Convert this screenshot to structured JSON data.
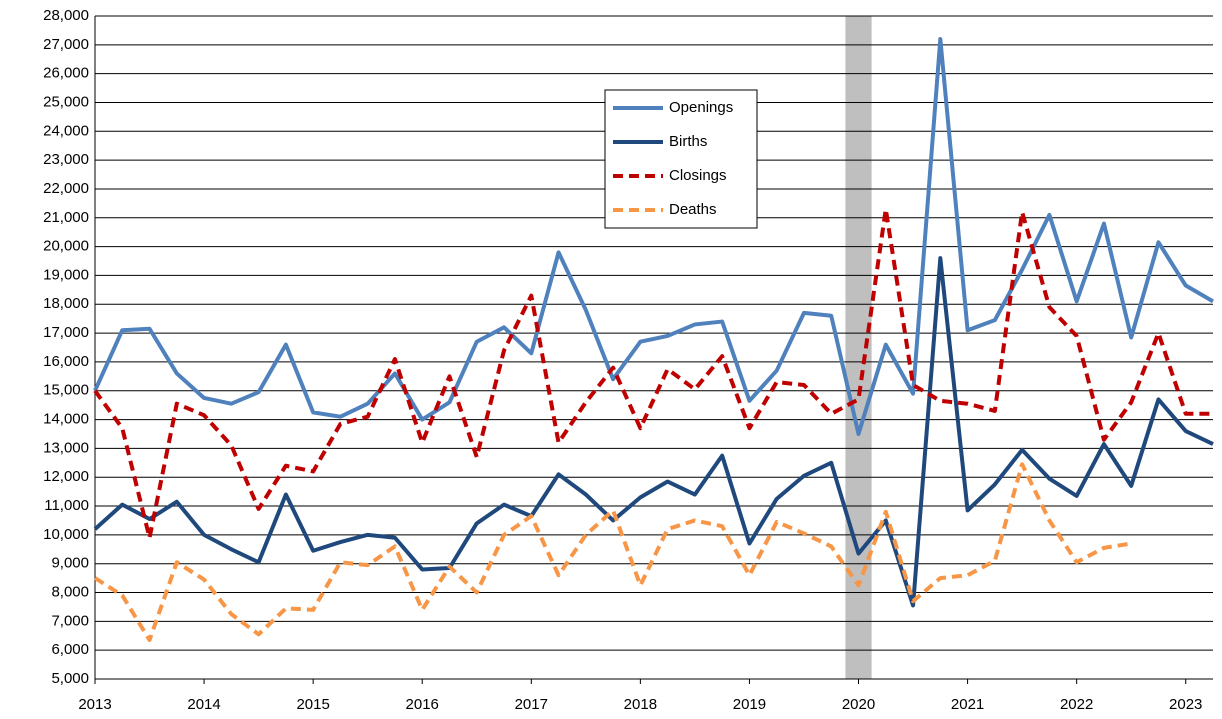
{
  "chart_data": {
    "type": "line",
    "x": [
      2013,
      2013.25,
      2013.5,
      2013.75,
      2014,
      2014.25,
      2014.5,
      2014.75,
      2015,
      2015.25,
      2015.5,
      2015.75,
      2016,
      2016.25,
      2016.5,
      2016.75,
      2017,
      2017.25,
      2017.5,
      2017.75,
      2018,
      2018.25,
      2018.5,
      2018.75,
      2019,
      2019.25,
      2019.5,
      2019.75,
      2020,
      2020.25,
      2020.5,
      2020.75,
      2021,
      2021.25,
      2021.5,
      2021.75,
      2022,
      2022.25,
      2022.5,
      2022.75,
      2023,
      2023.25
    ],
    "series": [
      {
        "name": "Openings",
        "color": "#4f81bd",
        "dash": "solid",
        "values": [
          15000,
          17100,
          17150,
          15600,
          14750,
          14550,
          14950,
          16600,
          14250,
          14100,
          14550,
          15600,
          14000,
          14600,
          16700,
          17200,
          16300,
          19800,
          17800,
          15400,
          16700,
          16900,
          17300,
          17400,
          14650,
          15700,
          17700,
          17600,
          13500,
          16600,
          14900,
          27200,
          17100,
          17450,
          19200,
          21100,
          18100,
          20800,
          16850,
          20150,
          18650,
          18100
        ]
      },
      {
        "name": "Births",
        "color": "#1f497d",
        "dash": "solid",
        "values": [
          10200,
          11050,
          10550,
          11150,
          10000,
          9500,
          9050,
          11400,
          9450,
          9750,
          10000,
          9900,
          8800,
          8850,
          10400,
          11050,
          10650,
          12100,
          11400,
          10500,
          11300,
          11850,
          11400,
          12750,
          9700,
          11250,
          12050,
          12500,
          9350,
          10500,
          7550,
          19600,
          10850,
          11750,
          12950,
          11950,
          11350,
          13150,
          11700,
          14700,
          13600,
          13150
        ]
      },
      {
        "name": "Closings",
        "color": "#c00000",
        "dash": "dashed",
        "values": [
          15000,
          13700,
          9900,
          14550,
          14150,
          13100,
          10900,
          12400,
          12200,
          13850,
          14100,
          16100,
          13200,
          15500,
          12700,
          16400,
          18300,
          13200,
          14600,
          15800,
          13700,
          15750,
          15050,
          16200,
          13700,
          15300,
          15200,
          14200,
          14700,
          21300,
          15200,
          14650,
          14550,
          14300,
          21200,
          17900,
          16900,
          13300,
          14600,
          17000,
          14200,
          14200
        ]
      },
      {
        "name": "Deaths",
        "color": "#f79646",
        "dash": "dashed",
        "values": [
          8500,
          7900,
          6350,
          9050,
          8450,
          7250,
          6550,
          7450,
          7400,
          9050,
          8950,
          9600,
          7400,
          8900,
          8000,
          10000,
          10650,
          8600,
          10000,
          10850,
          8250,
          10200,
          10500,
          10300,
          8600,
          10450,
          10050,
          9600,
          8250,
          10800,
          7700,
          8500,
          8600,
          9100,
          12450,
          10500,
          9050,
          9550,
          9700,
          null,
          null,
          null
        ]
      }
    ],
    "xlim": [
      2013,
      2023.25
    ],
    "xticks": [
      2013,
      2014,
      2015,
      2016,
      2017,
      2018,
      2019,
      2020,
      2021,
      2022,
      2023
    ],
    "ylim": [
      5000,
      28000
    ],
    "yticks": [
      {
        "value": 5000,
        "label": "5,000"
      },
      {
        "value": 6000,
        "label": "6,000"
      },
      {
        "value": 7000,
        "label": "7,000"
      },
      {
        "value": 8000,
        "label": "8,000"
      },
      {
        "value": 9000,
        "label": "9,000"
      },
      {
        "value": 10000,
        "label": "10,000"
      },
      {
        "value": 11000,
        "label": "11,000"
      },
      {
        "value": 12000,
        "label": "12,000"
      },
      {
        "value": 13000,
        "label": "13,000"
      },
      {
        "value": 14000,
        "label": "14,000"
      },
      {
        "value": 15000,
        "label": "15,000"
      },
      {
        "value": 16000,
        "label": "16,000"
      },
      {
        "value": 17000,
        "label": "17,000"
      },
      {
        "value": 18000,
        "label": "18,000"
      },
      {
        "value": 19000,
        "label": "19,000"
      },
      {
        "value": 20000,
        "label": "20,000"
      },
      {
        "value": 21000,
        "label": "21,000"
      },
      {
        "value": 22000,
        "label": "22,000"
      },
      {
        "value": 23000,
        "label": "23,000"
      },
      {
        "value": 24000,
        "label": "24,000"
      },
      {
        "value": 25000,
        "label": "25,000"
      },
      {
        "value": 26000,
        "label": "26,000"
      },
      {
        "value": 27000,
        "label": "27,000"
      },
      {
        "value": 28000,
        "label": "28,000"
      }
    ],
    "shaded_region": [
      2019.88,
      2020.12
    ],
    "shade_color": "#bfbfbf",
    "grid": true,
    "legend": "top-center"
  }
}
